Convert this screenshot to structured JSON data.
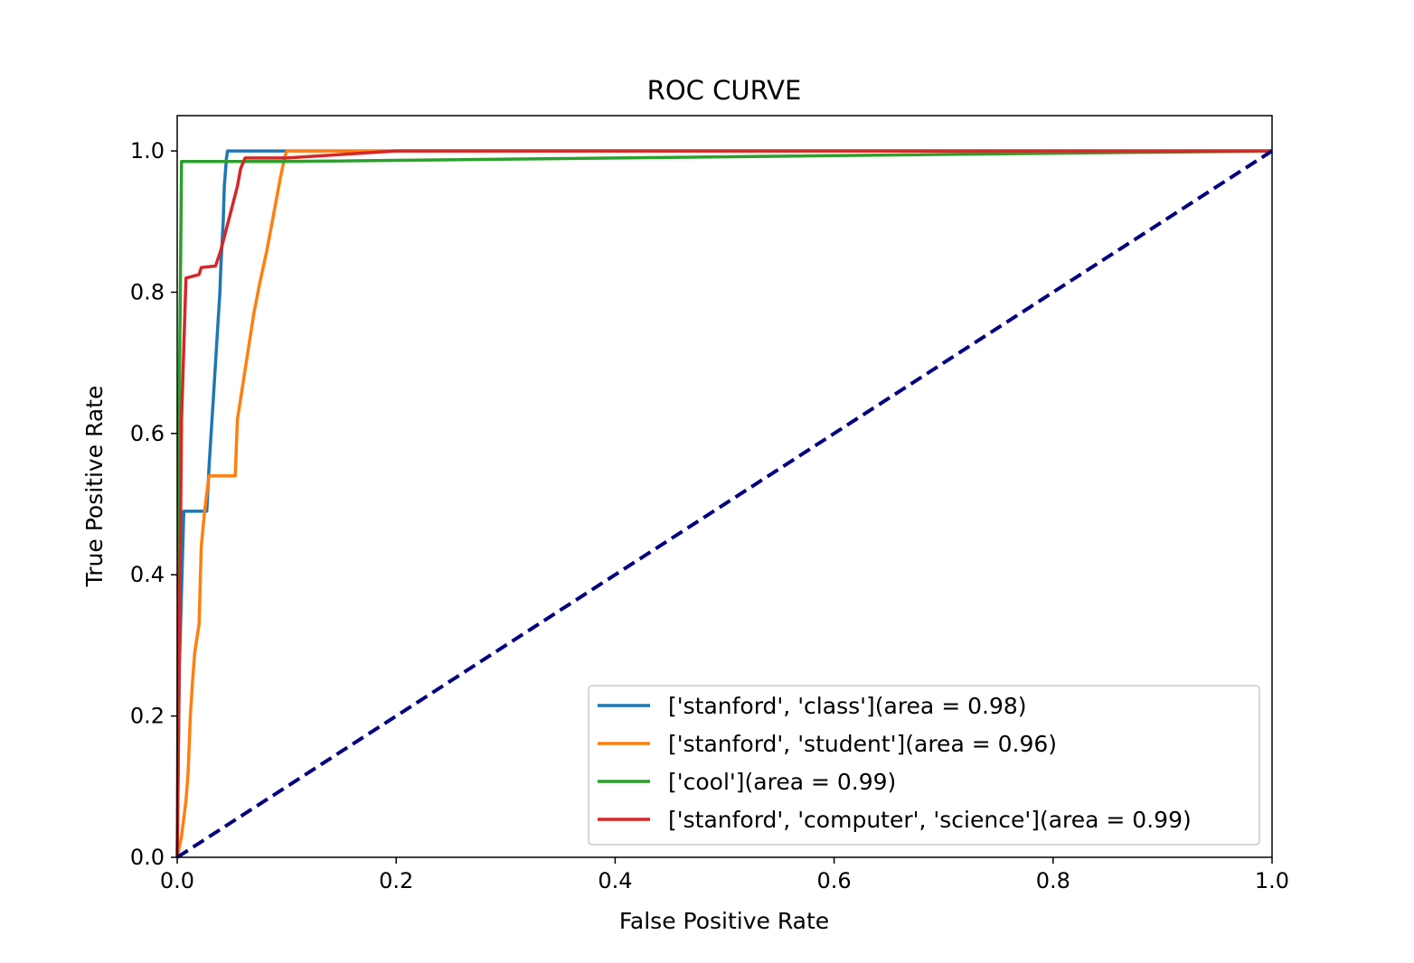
{
  "chart_data": {
    "type": "line",
    "title": "ROC CURVE",
    "xlabel": "False Positive Rate",
    "ylabel": "True Positive Rate",
    "xlim": [
      0.0,
      1.0
    ],
    "ylim": [
      0.0,
      1.05
    ],
    "xticks": [
      "0.0",
      "0.2",
      "0.4",
      "0.6",
      "0.8",
      "1.0"
    ],
    "yticks": [
      "0.0",
      "0.2",
      "0.4",
      "0.6",
      "0.8",
      "1.0"
    ],
    "grid": false,
    "legend_position": "lower-right",
    "series": [
      {
        "name": "['stanford', 'class'](area = 0.98)",
        "color": "#1f77b4",
        "points": [
          [
            0,
            0
          ],
          [
            0.002,
            0.27
          ],
          [
            0.006,
            0.49
          ],
          [
            0.027,
            0.49
          ],
          [
            0.029,
            0.55
          ],
          [
            0.031,
            0.6
          ],
          [
            0.033,
            0.65
          ],
          [
            0.035,
            0.7
          ],
          [
            0.037,
            0.75
          ],
          [
            0.039,
            0.8
          ],
          [
            0.04,
            0.84
          ],
          [
            0.042,
            0.9
          ],
          [
            0.043,
            0.95
          ],
          [
            0.045,
            0.99
          ],
          [
            0.046,
            1.0
          ],
          [
            0.1,
            1.0
          ],
          [
            1.0,
            1.0
          ]
        ]
      },
      {
        "name": "['stanford', 'student'](area = 0.96)",
        "color": "#ff7f0e",
        "points": [
          [
            0,
            0
          ],
          [
            0.004,
            0.03
          ],
          [
            0.008,
            0.08
          ],
          [
            0.01,
            0.12
          ],
          [
            0.012,
            0.2
          ],
          [
            0.014,
            0.25
          ],
          [
            0.016,
            0.29
          ],
          [
            0.02,
            0.33
          ],
          [
            0.022,
            0.44
          ],
          [
            0.025,
            0.49
          ],
          [
            0.029,
            0.54
          ],
          [
            0.053,
            0.54
          ],
          [
            0.055,
            0.62
          ],
          [
            0.06,
            0.67
          ],
          [
            0.065,
            0.72
          ],
          [
            0.07,
            0.77
          ],
          [
            0.075,
            0.81
          ],
          [
            0.082,
            0.86
          ],
          [
            0.088,
            0.91
          ],
          [
            0.094,
            0.96
          ],
          [
            0.098,
            0.99
          ],
          [
            0.1,
            1.0
          ],
          [
            1.0,
            1.0
          ]
        ]
      },
      {
        "name": "['cool'](area = 0.99)",
        "color": "#2ca02c",
        "points": [
          [
            0,
            0
          ],
          [
            0.002,
            0.66
          ],
          [
            0.004,
            0.985
          ],
          [
            0.1,
            0.985
          ],
          [
            1.0,
            1.0
          ]
        ]
      },
      {
        "name": "['stanford', 'computer', 'science'](area = 0.99)",
        "color": "#d62728",
        "points": [
          [
            0,
            0
          ],
          [
            0.002,
            0.3
          ],
          [
            0.004,
            0.62
          ],
          [
            0.008,
            0.82
          ],
          [
            0.02,
            0.825
          ],
          [
            0.022,
            0.835
          ],
          [
            0.035,
            0.837
          ],
          [
            0.04,
            0.86
          ],
          [
            0.045,
            0.89
          ],
          [
            0.05,
            0.92
          ],
          [
            0.055,
            0.95
          ],
          [
            0.058,
            0.975
          ],
          [
            0.062,
            0.99
          ],
          [
            0.1,
            0.99
          ],
          [
            0.15,
            0.995
          ],
          [
            0.2,
            1.0
          ],
          [
            1.0,
            1.0
          ]
        ]
      },
      {
        "name": "",
        "color": "#000080",
        "dashed": true,
        "points": [
          [
            0,
            0
          ],
          [
            1,
            1
          ]
        ]
      }
    ]
  }
}
